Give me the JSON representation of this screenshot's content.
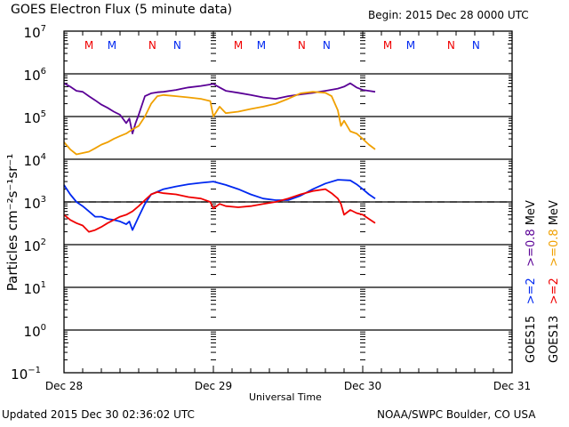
{
  "header": {
    "title": "GOES Electron Flux (5 minute data)",
    "begin": "Begin: 2015 Dec 28 0000 UTC"
  },
  "footer": {
    "updated": "Updated 2015 Dec 30 02:36:02 UTC",
    "credit": "NOAA/SWPC Boulder, CO USA"
  },
  "colors": {
    "goes15_high": "#5a0096",
    "goes13_high": "#f0a000",
    "goes15_low": "#0028f0",
    "goes13_low": "#f00000",
    "axis": "#000000"
  },
  "chart_data": {
    "type": "line",
    "title": "GOES Electron Flux (5 minute data)",
    "xlabel": "Universal Time",
    "ylabel": "Particles cm⁻²s⁻¹sr⁻¹",
    "x_unit": "hours since 2015 Dec 28 0000 UTC",
    "xlim": [
      0,
      72
    ],
    "ylim_log10": [
      -1,
      7
    ],
    "yscale": "log",
    "grid": true,
    "x_ticks": [
      {
        "hours": 0,
        "label": "Dec 28"
      },
      {
        "hours": 24,
        "label": "Dec 29"
      },
      {
        "hours": 48,
        "label": "Dec 30"
      },
      {
        "hours": 72,
        "label": "Dec 31"
      }
    ],
    "y_ticks": [
      {
        "exp": 7,
        "base": "10",
        "sup": "7"
      },
      {
        "exp": 6,
        "base": "10",
        "sup": "6"
      },
      {
        "exp": 5,
        "base": "10",
        "sup": "5"
      },
      {
        "exp": 4,
        "base": "10",
        "sup": "4"
      },
      {
        "exp": 3,
        "base": "10",
        "sup": "3"
      },
      {
        "exp": 2,
        "base": "10",
        "sup": "2"
      },
      {
        "exp": 1,
        "base": "10",
        "sup": "1"
      },
      {
        "exp": 0,
        "base": "10",
        "sup": "0"
      },
      {
        "exp": -1,
        "base": "10",
        "sup": "−1"
      }
    ],
    "threshold": {
      "value": 1000,
      "style": "dashed"
    },
    "mn_markers": [
      {
        "hours": 4.0,
        "label": "M",
        "color": "#f00000"
      },
      {
        "hours": 7.7,
        "label": "M",
        "color": "#0028f0"
      },
      {
        "hours": 14.2,
        "label": "N",
        "color": "#f00000"
      },
      {
        "hours": 18.2,
        "label": "N",
        "color": "#0028f0"
      },
      {
        "hours": 28.0,
        "label": "M",
        "color": "#f00000"
      },
      {
        "hours": 31.7,
        "label": "M",
        "color": "#0028f0"
      },
      {
        "hours": 38.2,
        "label": "N",
        "color": "#f00000"
      },
      {
        "hours": 42.2,
        "label": "N",
        "color": "#0028f0"
      },
      {
        "hours": 52.0,
        "label": "M",
        "color": "#f00000"
      },
      {
        "hours": 55.7,
        "label": "M",
        "color": "#0028f0"
      },
      {
        "hours": 62.2,
        "label": "N",
        "color": "#f00000"
      },
      {
        "hours": 66.2,
        "label": "N",
        "color": "#0028f0"
      }
    ],
    "legend": [
      {
        "sat": "GOES15",
        "energy": ">=2",
        "energy2": ">=0.8",
        "unit": "MeV",
        "color_low": "#0028f0",
        "color_high": "#5a0096"
      },
      {
        "sat": "GOES13",
        "energy": ">=2",
        "energy2": ">=0.8",
        "unit": "MeV",
        "color_low": "#f00000",
        "color_high": "#f0a000"
      }
    ],
    "legend_position": "right-vertical",
    "series": [
      {
        "name": "GOES15 >=0.8 MeV",
        "color": "#5a0096",
        "x": [
          0,
          1,
          2,
          3,
          4,
          5,
          6,
          7,
          8,
          9,
          10,
          10.5,
          11,
          11.5,
          12,
          13,
          14,
          15,
          16,
          17,
          18,
          19,
          20,
          22,
          24,
          25,
          26,
          28,
          30,
          32,
          34,
          36,
          38,
          40,
          42,
          44,
          45,
          46,
          47,
          48,
          49,
          50
        ],
        "y": [
          600000,
          500000,
          400000,
          380000,
          300000,
          240000,
          190000,
          160000,
          130000,
          110000,
          70000,
          90000,
          40000,
          70000,
          110000,
          300000,
          350000,
          370000,
          380000,
          400000,
          420000,
          450000,
          480000,
          520000,
          580000,
          480000,
          400000,
          360000,
          320000,
          280000,
          260000,
          300000,
          330000,
          360000,
          400000,
          450000,
          500000,
          600000,
          480000,
          420000,
          400000,
          380000
        ]
      },
      {
        "name": "GOES13 >=0.8 MeV",
        "color": "#f0a000",
        "x": [
          0,
          1,
          2,
          3,
          4,
          5,
          6,
          7,
          8,
          9,
          10,
          11,
          12,
          13,
          14,
          15,
          16,
          18,
          20,
          22,
          23.5,
          24,
          25,
          26,
          28,
          30,
          32,
          34,
          36,
          38,
          40,
          42,
          43,
          44,
          44.5,
          45,
          46,
          47,
          48,
          49,
          50
        ],
        "y": [
          25000,
          17000,
          13000,
          14000,
          15000,
          18000,
          22000,
          25000,
          30000,
          35000,
          40000,
          50000,
          60000,
          100000,
          200000,
          300000,
          320000,
          300000,
          280000,
          260000,
          230000,
          100000,
          170000,
          120000,
          130000,
          150000,
          170000,
          200000,
          260000,
          350000,
          380000,
          360000,
          300000,
          140000,
          60000,
          80000,
          45000,
          40000,
          30000,
          22000,
          17000
        ]
      },
      {
        "name": "GOES15 >=2 MeV",
        "color": "#0028f0",
        "x": [
          0,
          1,
          2,
          3,
          4,
          5,
          6,
          7,
          8,
          9,
          10,
          10.5,
          11,
          12,
          13,
          14,
          16,
          18,
          20,
          22,
          24,
          26,
          28,
          30,
          32,
          34,
          36,
          38,
          40,
          42,
          44,
          46,
          47,
          48,
          49,
          50
        ],
        "y": [
          2500,
          1500,
          1000,
          800,
          600,
          450,
          450,
          400,
          380,
          350,
          300,
          350,
          220,
          450,
          900,
          1500,
          2000,
          2300,
          2600,
          2800,
          3000,
          2500,
          2000,
          1500,
          1200,
          1100,
          1100,
          1400,
          2000,
          2700,
          3300,
          3200,
          2600,
          2000,
          1500,
          1200
        ]
      },
      {
        "name": "GOES13 >=2 MeV",
        "color": "#f00000",
        "x": [
          0,
          1,
          2,
          3,
          4,
          5,
          6,
          7,
          8,
          9,
          10,
          11,
          12,
          13,
          14,
          15,
          16,
          18,
          20,
          22,
          23.5,
          24,
          25,
          26,
          28,
          30,
          32,
          34,
          36,
          38,
          40,
          42,
          43,
          44,
          44.5,
          45,
          46,
          47,
          48,
          49,
          50
        ],
        "y": [
          500,
          380,
          320,
          280,
          200,
          220,
          260,
          320,
          380,
          450,
          500,
          600,
          800,
          1100,
          1500,
          1700,
          1600,
          1500,
          1300,
          1200,
          1000,
          700,
          900,
          800,
          750,
          800,
          900,
          1000,
          1200,
          1500,
          1800,
          2000,
          1600,
          1200,
          900,
          500,
          650,
          550,
          500,
          400,
          320
        ]
      }
    ]
  }
}
